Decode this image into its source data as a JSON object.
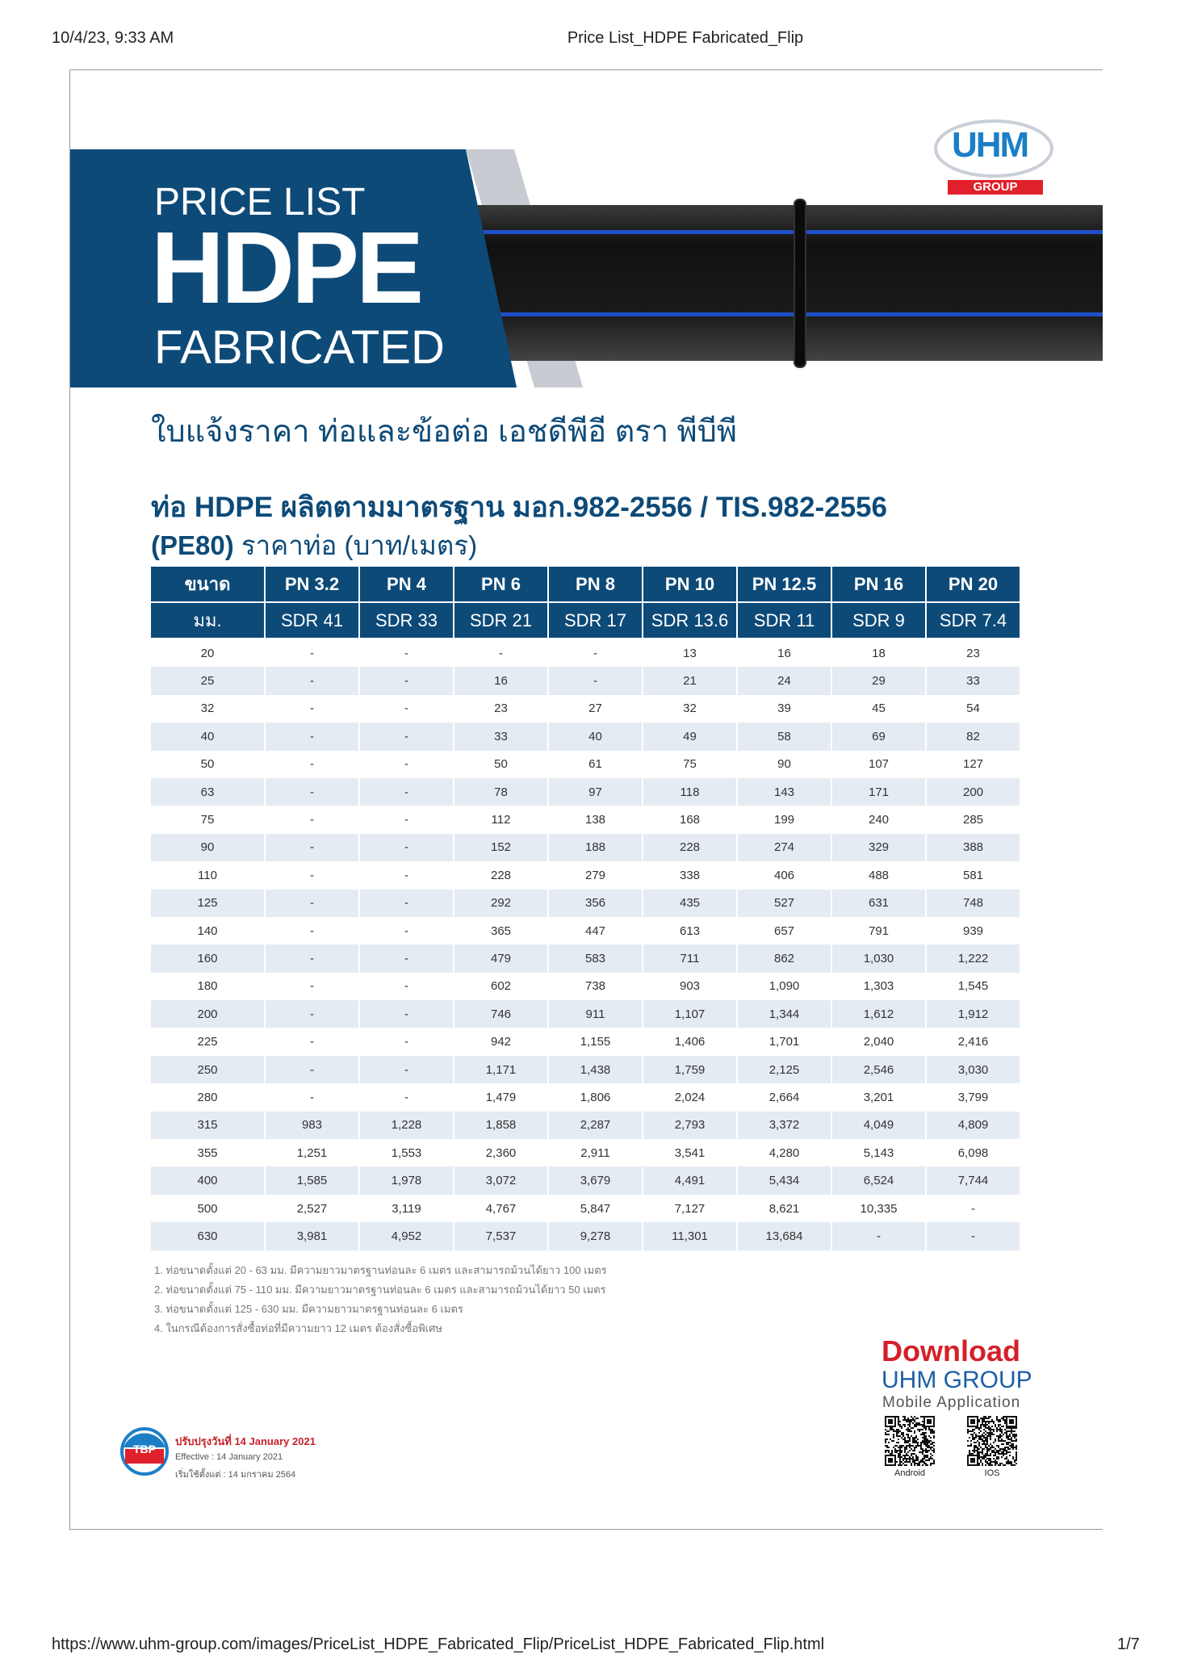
{
  "browser": {
    "datetime": "10/4/23, 9:33 AM",
    "title": "Price List_HDPE Fabricated_Flip",
    "url": "https://www.uhm-group.com/images/PriceList_HDPE_Fabricated_Flip/PriceList_HDPE_Fabricated_Flip.html",
    "page": "1/7"
  },
  "logo": {
    "name": "UHM",
    "group": "GROUP"
  },
  "banner": {
    "line1": "PRICE LIST",
    "line2": "HDPE",
    "line3": "FABRICATED"
  },
  "subtitle": "ใบแจ้งราคา ท่อและข้อต่อ เอชดีพีอี ตรา พีบีพี",
  "heading": {
    "line1": "ท่อ HDPE ผลิตตามมาตรฐาน มอก.982-2556 / TIS.982-2556",
    "code": "(PE80)",
    "unit": "ราคาท่อ (บาท/เมตร)"
  },
  "table": {
    "header": [
      "ขนาด",
      "PN 3.2",
      "PN 4",
      "PN 6",
      "PN 8",
      "PN 10",
      "PN 12.5",
      "PN 16",
      "PN 20"
    ],
    "subheader": [
      "มม.",
      "SDR 41",
      "SDR 33",
      "SDR 21",
      "SDR 17",
      "SDR 13.6",
      "SDR 11",
      "SDR 9",
      "SDR 7.4"
    ],
    "rows": [
      [
        "20",
        "-",
        "-",
        "-",
        "-",
        "13",
        "16",
        "18",
        "23"
      ],
      [
        "25",
        "-",
        "-",
        "16",
        "-",
        "21",
        "24",
        "29",
        "33"
      ],
      [
        "32",
        "-",
        "-",
        "23",
        "27",
        "32",
        "39",
        "45",
        "54"
      ],
      [
        "40",
        "-",
        "-",
        "33",
        "40",
        "49",
        "58",
        "69",
        "82"
      ],
      [
        "50",
        "-",
        "-",
        "50",
        "61",
        "75",
        "90",
        "107",
        "127"
      ],
      [
        "63",
        "-",
        "-",
        "78",
        "97",
        "118",
        "143",
        "171",
        "200"
      ],
      [
        "75",
        "-",
        "-",
        "112",
        "138",
        "168",
        "199",
        "240",
        "285"
      ],
      [
        "90",
        "-",
        "-",
        "152",
        "188",
        "228",
        "274",
        "329",
        "388"
      ],
      [
        "110",
        "-",
        "-",
        "228",
        "279",
        "338",
        "406",
        "488",
        "581"
      ],
      [
        "125",
        "-",
        "-",
        "292",
        "356",
        "435",
        "527",
        "631",
        "748"
      ],
      [
        "140",
        "-",
        "-",
        "365",
        "447",
        "613",
        "657",
        "791",
        "939"
      ],
      [
        "160",
        "-",
        "-",
        "479",
        "583",
        "711",
        "862",
        "1,030",
        "1,222"
      ],
      [
        "180",
        "-",
        "-",
        "602",
        "738",
        "903",
        "1,090",
        "1,303",
        "1,545"
      ],
      [
        "200",
        "-",
        "-",
        "746",
        "911",
        "1,107",
        "1,344",
        "1,612",
        "1,912"
      ],
      [
        "225",
        "-",
        "-",
        "942",
        "1,155",
        "1,406",
        "1,701",
        "2,040",
        "2,416"
      ],
      [
        "250",
        "-",
        "-",
        "1,171",
        "1,438",
        "1,759",
        "2,125",
        "2,546",
        "3,030"
      ],
      [
        "280",
        "-",
        "-",
        "1,479",
        "1,806",
        "2,024",
        "2,664",
        "3,201",
        "3,799"
      ],
      [
        "315",
        "983",
        "1,228",
        "1,858",
        "2,287",
        "2,793",
        "3,372",
        "4,049",
        "4,809"
      ],
      [
        "355",
        "1,251",
        "1,553",
        "2,360",
        "2,911",
        "3,541",
        "4,280",
        "5,143",
        "6,098"
      ],
      [
        "400",
        "1,585",
        "1,978",
        "3,072",
        "3,679",
        "4,491",
        "5,434",
        "6,524",
        "7,744"
      ],
      [
        "500",
        "2,527",
        "3,119",
        "4,767",
        "5,847",
        "7,127",
        "8,621",
        "10,335",
        "-"
      ],
      [
        "630",
        "3,981",
        "4,952",
        "7,537",
        "9,278",
        "11,301",
        "13,684",
        "-",
        "-"
      ]
    ]
  },
  "notes": [
    "1. ท่อขนาดตั้งแต่ 20 - 63 มม. มีความยาวมาตรฐานท่อนละ 6 เมตร และสามารถม้วนได้ยาว 100 เมตร",
    "2. ท่อขนาดตั้งแต่ 75 - 110 มม. มีความยาวมาตรฐานท่อนละ 6 เมตร และสามารถม้วนได้ยาว 50 เมตร",
    "3. ท่อขนาดตั้งแต่ 125 - 630 มม. มีความยาวมาตรฐานท่อนละ 6 เมตร",
    "4. ในกรณีต้องการสั่งซื้อท่อที่มีความยาว 12 เมตร ต้องสั่งซื้อพิเศษ"
  ],
  "footer_info": {
    "brand": "TBP",
    "updated_label": "ปรับปรุงวันที่",
    "updated": "14 January 2021",
    "effective": "Effective : 14 January 2021",
    "start": "เริ่มใช้ตั้งแต่ : 14 มกราคม 2564"
  },
  "download": {
    "title": "Download",
    "brand": "UHM GROUP",
    "app": "Mobile Application",
    "android": "Android",
    "ios": "IOS"
  }
}
